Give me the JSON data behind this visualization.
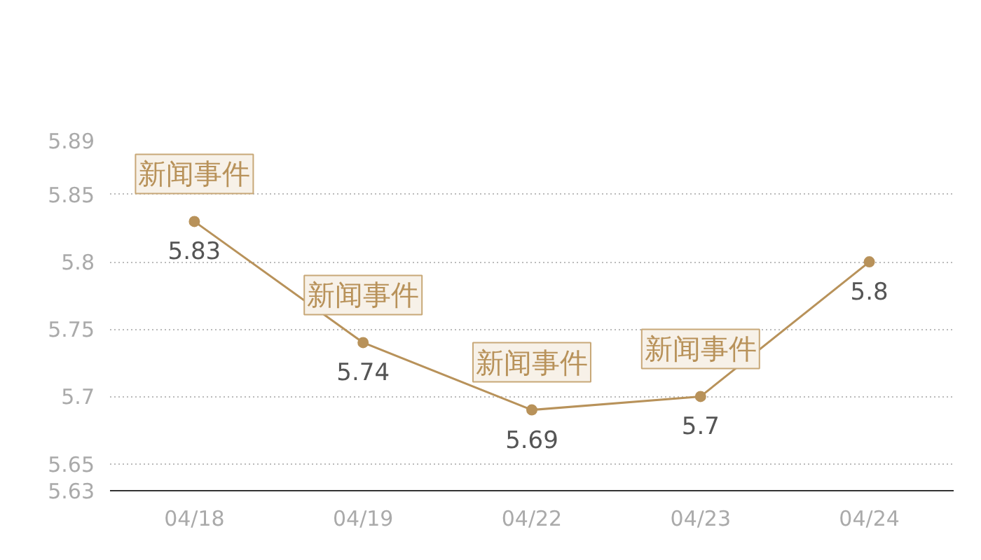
{
  "chart_data": {
    "type": "line",
    "categories": [
      "04/18",
      "04/19",
      "04/22",
      "04/23",
      "04/24"
    ],
    "series": [
      {
        "color": "#b8925a",
        "values": [
          5.83,
          5.74,
          5.69,
          5.7,
          5.8
        ]
      }
    ],
    "ylim": [
      5.63,
      5.89
    ],
    "yticks": [
      5.63,
      5.65,
      5.7,
      5.75,
      5.8,
      5.85,
      5.89
    ],
    "grid": "y",
    "marker": "circle",
    "line_style": "solid",
    "data_labels": true,
    "annotations": [
      {
        "text": "新闻事件",
        "x": "04/18",
        "y": 5.83
      },
      {
        "text": "新闻事件",
        "x": "04/19",
        "y": 5.74
      },
      {
        "text": "新闻事件",
        "x": "04/22",
        "y": 5.69
      },
      {
        "text": "新闻事件",
        "x": "04/23",
        "y": 5.7
      }
    ]
  }
}
